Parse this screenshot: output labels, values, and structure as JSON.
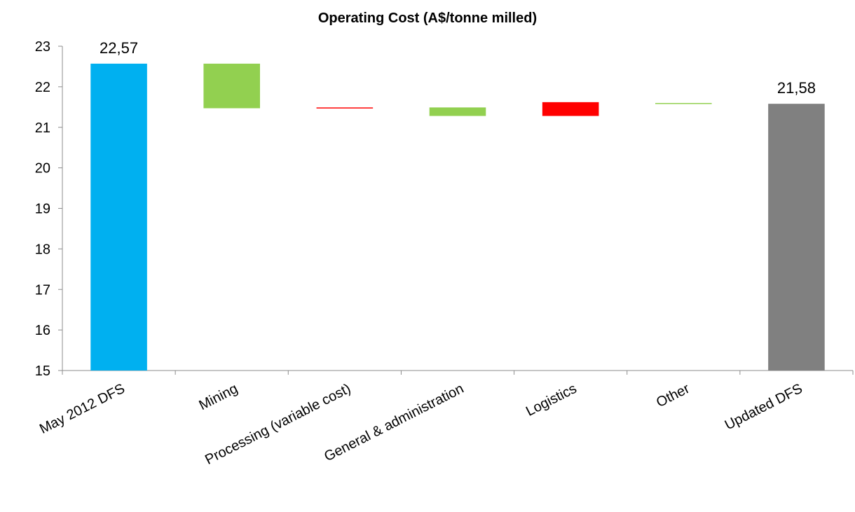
{
  "chart_data": {
    "type": "bar",
    "subtype": "waterfall",
    "title": "Operating Cost (A$/tonne milled)",
    "xlabel": "",
    "ylabel": "",
    "ylim": [
      15,
      23
    ],
    "yticks": [
      15,
      16,
      17,
      18,
      19,
      20,
      21,
      22,
      23
    ],
    "grid": false,
    "legend": "none",
    "categories": [
      "May 2012 DFS",
      "Mining",
      "Processing (variable cost)",
      "General & administration",
      "Logistics",
      "Other",
      "Updated DFS"
    ],
    "bars": [
      {
        "category": "May 2012 DFS",
        "low": 15,
        "high": 22.57,
        "color": "#00B0F0",
        "label": "22,57"
      },
      {
        "category": "Mining",
        "low": 21.47,
        "high": 22.57,
        "color": "#92D050",
        "label": ""
      },
      {
        "category": "Processing (variable cost)",
        "low": 21.47,
        "high": 21.49,
        "color": "#FF0000",
        "label": ""
      },
      {
        "category": "General & administration",
        "low": 21.28,
        "high": 21.49,
        "color": "#92D050",
        "label": ""
      },
      {
        "category": "Logistics",
        "low": 21.28,
        "high": 21.62,
        "color": "#FF0000",
        "label": ""
      },
      {
        "category": "Other",
        "low": 21.58,
        "high": 21.6,
        "color": "#92D050",
        "label": ""
      },
      {
        "category": "Updated DFS",
        "low": 15,
        "high": 21.58,
        "color": "#808080",
        "label": "21,58"
      }
    ]
  }
}
